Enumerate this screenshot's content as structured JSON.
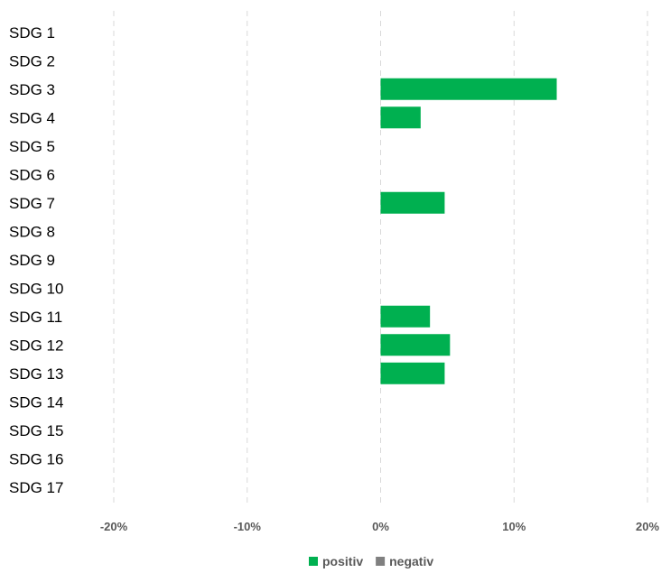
{
  "chart_data": {
    "type": "bar",
    "orientation": "horizontal",
    "categories": [
      "SDG 1",
      "SDG 2",
      "SDG 3",
      "SDG 4",
      "SDG 5",
      "SDG 6",
      "SDG 7",
      "SDG 8",
      "SDG 9",
      "SDG 10",
      "SDG 11",
      "SDG 12",
      "SDG 13",
      "SDG 14",
      "SDG 15",
      "SDG 16",
      "SDG 17"
    ],
    "series": [
      {
        "name": "positiv",
        "color": "#00b050",
        "values": [
          0,
          0,
          13.2,
          3.0,
          0,
          0,
          4.8,
          0,
          0,
          0,
          3.7,
          5.2,
          4.8,
          0,
          0,
          0,
          0
        ]
      },
      {
        "name": "negativ",
        "color": "#808080",
        "values": [
          0,
          0,
          0,
          0,
          0,
          0,
          0,
          0,
          0,
          0,
          0,
          0,
          0,
          0,
          0,
          0,
          0
        ]
      }
    ],
    "xlim": [
      -20,
      20
    ],
    "xticks": [
      -20,
      -10,
      0,
      10,
      20
    ],
    "xtick_labels": [
      "-20%",
      "-10%",
      "0%",
      "10%",
      "20%"
    ],
    "grid": "vertical dashed",
    "legend_position": "bottom"
  }
}
